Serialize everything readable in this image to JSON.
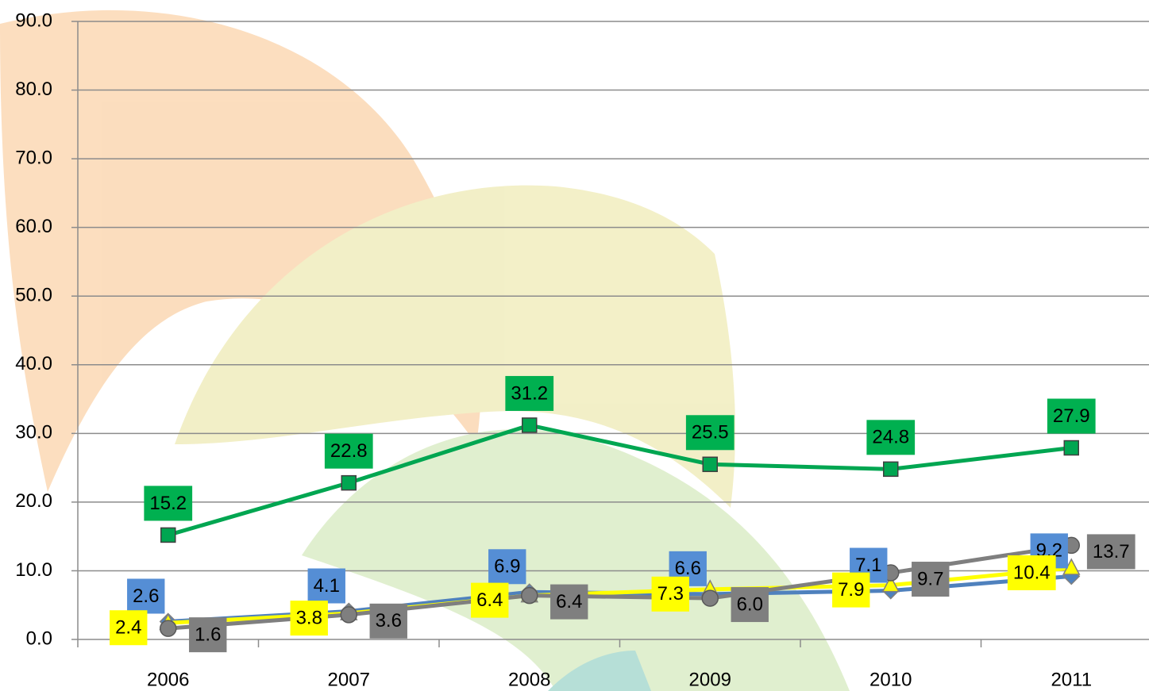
{
  "chart_data": {
    "type": "line",
    "categories": [
      "2006",
      "2007",
      "2008",
      "2009",
      "2010",
      "2011"
    ],
    "series": [
      {
        "color": "#00a651",
        "label_color": "#00b050",
        "marker": "square",
        "values": [
          15.2,
          22.8,
          31.2,
          25.5,
          24.8,
          27.9
        ]
      },
      {
        "color": "#4f81bd",
        "label_color": "#558ed5",
        "marker": "diamond",
        "values": [
          2.6,
          4.1,
          6.9,
          6.6,
          7.1,
          9.2
        ]
      },
      {
        "color": "#ffff00",
        "label_color": "#ffff00",
        "marker": "triangle",
        "values": [
          2.4,
          3.8,
          6.4,
          7.3,
          7.9,
          10.4
        ]
      },
      {
        "color": "#7f7f7f",
        "label_color": "#7f7f7f",
        "marker": "circle",
        "values": [
          1.6,
          3.6,
          6.4,
          6.0,
          9.7,
          13.7
        ],
        "value_labels": [
          "1.6",
          "3.6",
          "6.4",
          "6.0",
          "9.7",
          "13.7"
        ]
      }
    ],
    "ylim": [
      0,
      90
    ],
    "yticks": [
      {
        "value": 0,
        "label": "0.0"
      },
      {
        "value": 10,
        "label": "10.0"
      },
      {
        "value": 20,
        "label": "20.0"
      },
      {
        "value": 30,
        "label": "30.0"
      },
      {
        "value": 40,
        "label": "40.0"
      },
      {
        "value": 50,
        "label": "50.0"
      },
      {
        "value": 60,
        "label": "60.0"
      },
      {
        "value": 70,
        "label": "70.0"
      },
      {
        "value": 80,
        "label": "80.0"
      },
      {
        "value": 90,
        "label": "90.0"
      }
    ],
    "grid": true
  }
}
